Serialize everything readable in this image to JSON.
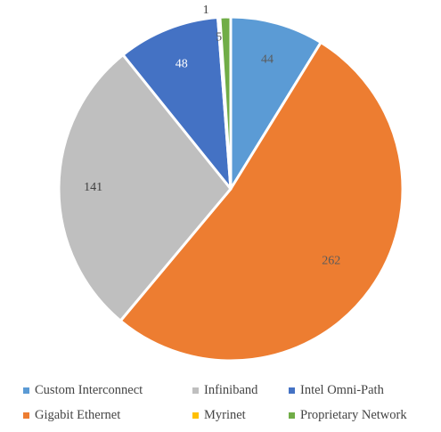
{
  "chart_data": {
    "type": "pie",
    "title": "",
    "legend_position": "bottom",
    "start_angle_deg": 0,
    "direction": "clockwise",
    "slices": [
      {
        "label": "Custom Interconnect",
        "value": 44,
        "value_label": "44",
        "color": "#5B9BD5",
        "label_color": "#5a5a5a"
      },
      {
        "label": "Gigabit Ethernet",
        "value": 262,
        "value_label": "262",
        "color": "#ED7D31",
        "label_color": "#5a5a5a"
      },
      {
        "label": "Infiniband",
        "value": 141,
        "value_label": "141",
        "color": "#BFBFBF",
        "label_color": "#404040"
      },
      {
        "label": "Intel Omni-Path",
        "value": 48,
        "value_label": "48",
        "color": "#4472C4",
        "label_color": "#ffffff"
      },
      {
        "label": "Myrinet",
        "value": 1,
        "value_label": "1",
        "color": "#FFC000",
        "label_color": "#404040"
      },
      {
        "label": "Proprietary Network",
        "value": 5,
        "value_label": "5",
        "color": "#70AD47",
        "label_color": "#5a5a5a"
      }
    ]
  },
  "legend": {
    "rows": [
      [
        {
          "label": "Custom Interconnect",
          "color": "#5B9BD5"
        },
        {
          "label": "Infiniband",
          "color": "#BFBFBF"
        },
        {
          "label": "Intel Omni-Path",
          "color": "#4472C4"
        }
      ],
      [
        {
          "label": "Gigabit Ethernet",
          "color": "#ED7D31"
        },
        {
          "label": "Myrinet",
          "color": "#FFC000"
        },
        {
          "label": "Proprietary Network",
          "color": "#70AD47"
        }
      ]
    ]
  }
}
